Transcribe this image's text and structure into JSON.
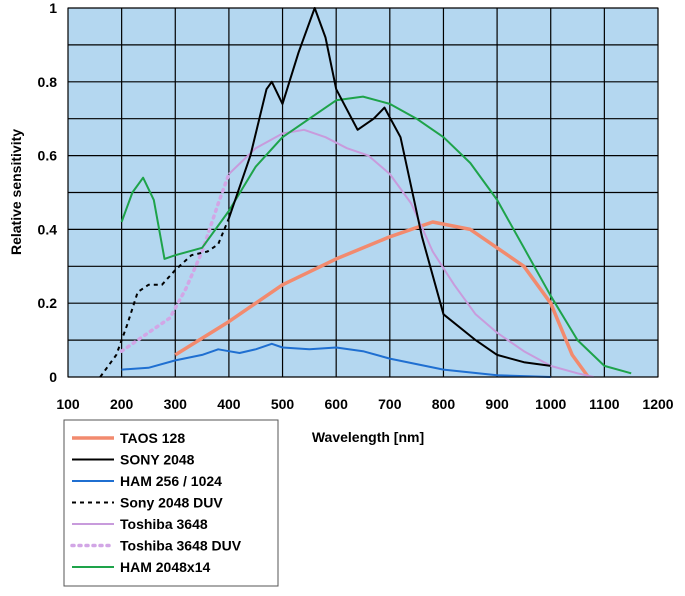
{
  "chart_data": {
    "type": "line",
    "xlabel": "Wavelength [nm]",
    "ylabel": "Relative sensitivity",
    "xlim": [
      100,
      1200
    ],
    "ylim": [
      0,
      1.0
    ],
    "x_ticks": [
      "100",
      "200",
      "300",
      "400",
      "500",
      "600",
      "700",
      "800",
      "900",
      "1000",
      "1100",
      "1200"
    ],
    "y_ticks": [
      "0",
      "0.2",
      "0.4",
      "0.6",
      "0.8",
      "1"
    ],
    "grid": true,
    "background": "#b4d7f0",
    "legend_position": "bottom-left",
    "series": [
      {
        "name": "TAOS 128",
        "color": "#f28a6e",
        "dash": "solid",
        "points": [
          [
            300,
            0.06
          ],
          [
            400,
            0.15
          ],
          [
            500,
            0.25
          ],
          [
            600,
            0.32
          ],
          [
            700,
            0.38
          ],
          [
            780,
            0.42
          ],
          [
            850,
            0.4
          ],
          [
            950,
            0.3
          ],
          [
            1000,
            0.2
          ],
          [
            1040,
            0.06
          ],
          [
            1070,
            0.0
          ]
        ]
      },
      {
        "name": "SONY 2048",
        "color": "#000000",
        "dash": "solid",
        "points": [
          [
            400,
            0.43
          ],
          [
            440,
            0.6
          ],
          [
            470,
            0.78
          ],
          [
            480,
            0.8
          ],
          [
            500,
            0.74
          ],
          [
            530,
            0.88
          ],
          [
            560,
            1.0
          ],
          [
            580,
            0.92
          ],
          [
            600,
            0.78
          ],
          [
            640,
            0.67
          ],
          [
            670,
            0.7
          ],
          [
            690,
            0.73
          ],
          [
            720,
            0.65
          ],
          [
            760,
            0.38
          ],
          [
            800,
            0.17
          ],
          [
            860,
            0.1
          ],
          [
            900,
            0.06
          ],
          [
            950,
            0.04
          ],
          [
            1000,
            0.03
          ]
        ]
      },
      {
        "name": "HAM 256 / 1024",
        "color": "#1f6fd1",
        "dash": "solid",
        "points": [
          [
            200,
            0.02
          ],
          [
            250,
            0.025
          ],
          [
            300,
            0.045
          ],
          [
            350,
            0.06
          ],
          [
            380,
            0.075
          ],
          [
            400,
            0.07
          ],
          [
            420,
            0.065
          ],
          [
            450,
            0.075
          ],
          [
            480,
            0.09
          ],
          [
            500,
            0.08
          ],
          [
            550,
            0.075
          ],
          [
            600,
            0.08
          ],
          [
            650,
            0.07
          ],
          [
            700,
            0.05
          ],
          [
            750,
            0.035
          ],
          [
            800,
            0.02
          ],
          [
            900,
            0.005
          ],
          [
            1000,
            0.0
          ]
        ]
      },
      {
        "name": "Sony 2048 DUV",
        "color": "#000000",
        "dash": "dash",
        "points": [
          [
            160,
            0.0
          ],
          [
            190,
            0.06
          ],
          [
            210,
            0.14
          ],
          [
            230,
            0.23
          ],
          [
            250,
            0.25
          ],
          [
            275,
            0.25
          ],
          [
            300,
            0.29
          ],
          [
            330,
            0.33
          ],
          [
            360,
            0.34
          ],
          [
            380,
            0.36
          ],
          [
            400,
            0.43
          ]
        ]
      },
      {
        "name": "Toshiba 3648",
        "color": "#c89bdc",
        "dash": "solid",
        "points": [
          [
            400,
            0.55
          ],
          [
            450,
            0.62
          ],
          [
            500,
            0.66
          ],
          [
            540,
            0.67
          ],
          [
            580,
            0.65
          ],
          [
            620,
            0.62
          ],
          [
            660,
            0.6
          ],
          [
            700,
            0.55
          ],
          [
            740,
            0.47
          ],
          [
            780,
            0.34
          ],
          [
            820,
            0.25
          ],
          [
            860,
            0.17
          ],
          [
            900,
            0.12
          ],
          [
            950,
            0.07
          ],
          [
            1000,
            0.03
          ],
          [
            1050,
            0.01
          ],
          [
            1080,
            0.0
          ]
        ]
      },
      {
        "name": "Toshiba 3648 DUV",
        "color": "#d2a6e6",
        "dash": "dot",
        "points": [
          [
            200,
            0.07
          ],
          [
            230,
            0.1
          ],
          [
            260,
            0.13
          ],
          [
            290,
            0.16
          ],
          [
            320,
            0.24
          ],
          [
            350,
            0.34
          ],
          [
            380,
            0.47
          ],
          [
            400,
            0.55
          ]
        ]
      },
      {
        "name": "HAM 2048x14",
        "color": "#1ea34a",
        "dash": "solid",
        "points": [
          [
            200,
            0.42
          ],
          [
            220,
            0.5
          ],
          [
            240,
            0.54
          ],
          [
            260,
            0.48
          ],
          [
            280,
            0.32
          ],
          [
            300,
            0.33
          ],
          [
            350,
            0.35
          ],
          [
            400,
            0.45
          ],
          [
            450,
            0.57
          ],
          [
            500,
            0.65
          ],
          [
            550,
            0.7
          ],
          [
            600,
            0.75
          ],
          [
            650,
            0.76
          ],
          [
            700,
            0.74
          ],
          [
            750,
            0.7
          ],
          [
            800,
            0.65
          ],
          [
            850,
            0.58
          ],
          [
            900,
            0.48
          ],
          [
            950,
            0.35
          ],
          [
            1000,
            0.22
          ],
          [
            1050,
            0.1
          ],
          [
            1100,
            0.03
          ],
          [
            1150,
            0.01
          ]
        ]
      }
    ]
  }
}
